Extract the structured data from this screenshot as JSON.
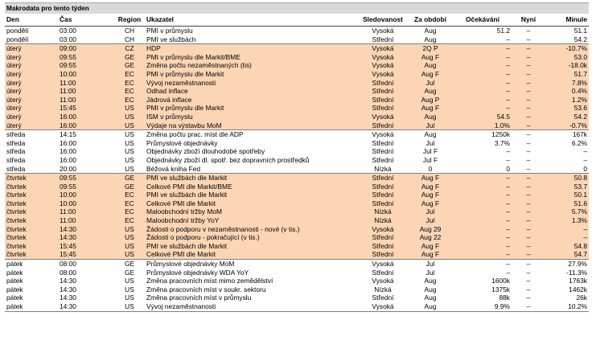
{
  "title": "Makrodata pro tento týden",
  "headers": [
    "Den",
    "Čas",
    "Region",
    "Ukazatel",
    "Sledovanost",
    "Za období",
    "Očekávání",
    "Nyní",
    "Minule"
  ],
  "colors": {
    "highlight": "#fcd5b4",
    "title_bg": "#d9d9d9"
  },
  "rows": [
    {
      "day": "pondělí",
      "time": "03:00",
      "region": "CH",
      "indicator": "PMI v průmyslu",
      "watch": "Vysoká",
      "period": "Aug",
      "expected": "51.2",
      "now": "–",
      "previous": "51.1",
      "hl": false,
      "grp": false
    },
    {
      "day": "pondělí",
      "time": "03:00",
      "region": "CH",
      "indicator": "PMI ve službách",
      "watch": "Střední",
      "period": "Aug",
      "expected": "–",
      "now": "–",
      "previous": "54.2",
      "hl": false,
      "grp": false
    },
    {
      "day": "úterý",
      "time": "09:00",
      "region": "CZ",
      "indicator": "HDP",
      "watch": "Vysoká",
      "period": "2Q P",
      "expected": "–",
      "now": "–",
      "previous": "-10.7%",
      "hl": true,
      "grp": true
    },
    {
      "day": "úterý",
      "time": "09:55",
      "region": "GE",
      "indicator": "PMI v průmyslu dle Markit/BME",
      "watch": "Vysoká",
      "period": "Aug F",
      "expected": "–",
      "now": "–",
      "previous": "53.0",
      "hl": true,
      "grp": false
    },
    {
      "day": "úterý",
      "time": "09:55",
      "region": "GE",
      "indicator": "Změna počtu nezaměstnaných (tis)",
      "watch": "Vysoká",
      "period": "Aug",
      "expected": "–",
      "now": "–",
      "previous": "-18.0k",
      "hl": true,
      "grp": false
    },
    {
      "day": "úterý",
      "time": "10:00",
      "region": "EC",
      "indicator": "PMI v průmyslu dle Markit",
      "watch": "Vysoká",
      "period": "Aug F",
      "expected": "–",
      "now": "–",
      "previous": "51.7",
      "hl": true,
      "grp": false
    },
    {
      "day": "úterý",
      "time": "11:00",
      "region": "EC",
      "indicator": "Vývoj nezaměstnanosti",
      "watch": "Střední",
      "period": "Jul",
      "expected": "–",
      "now": "–",
      "previous": "7.8%",
      "hl": true,
      "grp": false
    },
    {
      "day": "úterý",
      "time": "11:00",
      "region": "EC",
      "indicator": "Odhad inflace",
      "watch": "Střední",
      "period": "Aug",
      "expected": "–",
      "now": "–",
      "previous": "0.4%",
      "hl": true,
      "grp": false
    },
    {
      "day": "úterý",
      "time": "11:00",
      "region": "EC",
      "indicator": "Jádrová inflace",
      "watch": "Střední",
      "period": "Aug P",
      "expected": "–",
      "now": "–",
      "previous": "1.2%",
      "hl": true,
      "grp": false
    },
    {
      "day": "úterý",
      "time": "15:45",
      "region": "US",
      "indicator": "PMI v průmyslu dle Markit",
      "watch": "Střední",
      "period": "Aug F",
      "expected": "–",
      "now": "–",
      "previous": "53.6",
      "hl": true,
      "grp": false
    },
    {
      "day": "úterý",
      "time": "16:00",
      "region": "US",
      "indicator": "ISM v průmyslu",
      "watch": "Vysoká",
      "period": "Aug",
      "expected": "54.5",
      "now": "–",
      "previous": "54.2",
      "hl": true,
      "grp": false
    },
    {
      "day": "úterý",
      "time": "16:00",
      "region": "US",
      "indicator": "Výdaje na výstavbu MoM",
      "watch": "Střední",
      "period": "Jul",
      "expected": "1.0%",
      "now": "–",
      "previous": "-0.7%",
      "hl": true,
      "grp": false
    },
    {
      "day": "středa",
      "time": "14:15",
      "region": "US",
      "indicator": "Změna počtu prac. míst dle ADP",
      "watch": "Vysoká",
      "period": "Aug",
      "expected": "1250k",
      "now": "–",
      "previous": "167k",
      "hl": false,
      "grp": true
    },
    {
      "day": "středa",
      "time": "16:00",
      "region": "US",
      "indicator": "Průmyslové objednávky",
      "watch": "Střední",
      "period": "Jul",
      "expected": "3.7%",
      "now": "–",
      "previous": "6.2%",
      "hl": false,
      "grp": false
    },
    {
      "day": "středa",
      "time": "16:00",
      "region": "US",
      "indicator": "Objednávky zboží dlouhodobé spotřeby",
      "watch": "Střední",
      "period": "Jul F",
      "expected": "–",
      "now": "–",
      "previous": "–",
      "hl": false,
      "grp": false
    },
    {
      "day": "středa",
      "time": "16:00",
      "region": "US",
      "indicator": "Objednávky zboží dl. spotř. bez dopravních prostředků",
      "watch": "Střední",
      "period": "Jul F",
      "expected": "–",
      "now": "–",
      "previous": "–",
      "hl": false,
      "grp": false
    },
    {
      "day": "středa",
      "time": "20:00",
      "region": "US",
      "indicator": "Béžová kniha Fed",
      "watch": "Nízká",
      "period": "0",
      "expected": "0",
      "now": "–",
      "previous": "0",
      "hl": false,
      "grp": false
    },
    {
      "day": "čtvrtek",
      "time": "09:55",
      "region": "GE",
      "indicator": "PMI ve službách dle Markit",
      "watch": "Střední",
      "period": "Aug F",
      "expected": "–",
      "now": "–",
      "previous": "50.8",
      "hl": true,
      "grp": true
    },
    {
      "day": "čtvrtek",
      "time": "09:55",
      "region": "GE",
      "indicator": "Celkové PMI dle Markit/BME",
      "watch": "Střední",
      "period": "Aug F",
      "expected": "–",
      "now": "–",
      "previous": "53.7",
      "hl": true,
      "grp": false
    },
    {
      "day": "čtvrtek",
      "time": "10:00",
      "region": "EC",
      "indicator": "PMI ve službách dle Markit",
      "watch": "Střední",
      "period": "Aug F",
      "expected": "–",
      "now": "–",
      "previous": "50.1",
      "hl": true,
      "grp": false
    },
    {
      "day": "čtvrtek",
      "time": "10:00",
      "region": "EC",
      "indicator": "Celkové PMI dle Markit",
      "watch": "Střední",
      "period": "Aug F",
      "expected": "–",
      "now": "–",
      "previous": "51.6",
      "hl": true,
      "grp": false
    },
    {
      "day": "čtvrtek",
      "time": "11:00",
      "region": "EC",
      "indicator": "Maloobchodní tržby MoM",
      "watch": "Nízká",
      "period": "Jul",
      "expected": "–",
      "now": "–",
      "previous": "5.7%",
      "hl": true,
      "grp": false
    },
    {
      "day": "čtvrtek",
      "time": "11:00",
      "region": "EC",
      "indicator": "Maloobchodní tržby YoY",
      "watch": "Nízká",
      "period": "Jul",
      "expected": "–",
      "now": "–",
      "previous": "1.3%",
      "hl": true,
      "grp": false
    },
    {
      "day": "čtvrtek",
      "time": "14:30",
      "region": "US",
      "indicator": "Žádosti o podporu v nezaměstnanosti - nové (v tis.)",
      "watch": "Vysoká",
      "period": "Aug 29",
      "expected": "–",
      "now": "–",
      "previous": "–",
      "hl": true,
      "grp": false
    },
    {
      "day": "čtvrtek",
      "time": "14:30",
      "region": "US",
      "indicator": "Žádosti o podporu - pokračující (v tis.)",
      "watch": "Střední",
      "period": "Aug 22",
      "expected": "–",
      "now": "–",
      "previous": "–",
      "hl": true,
      "grp": false
    },
    {
      "day": "čtvrtek",
      "time": "15:45",
      "region": "US",
      "indicator": "PMI ve službách dle Markit",
      "watch": "Střední",
      "period": "Aug F",
      "expected": "–",
      "now": "–",
      "previous": "54.8",
      "hl": true,
      "grp": false
    },
    {
      "day": "čtvrtek",
      "time": "15:45",
      "region": "US",
      "indicator": "Celkové PMI dle Markit",
      "watch": "Střední",
      "period": "Aug F",
      "expected": "–",
      "now": "–",
      "previous": "54.7",
      "hl": true,
      "grp": false
    },
    {
      "day": "pátek",
      "time": "08:00",
      "region": "GE",
      "indicator": "Průmyslové objednávky MoM",
      "watch": "Vysoká",
      "period": "Jul",
      "expected": "–",
      "now": "–",
      "previous": "27.9%",
      "hl": false,
      "grp": true
    },
    {
      "day": "pátek",
      "time": "08:00",
      "region": "GE",
      "indicator": "Průmyslové objednávky WDA YoY",
      "watch": "Střední",
      "period": "Jul",
      "expected": "–",
      "now": "–",
      "previous": "-11.3%",
      "hl": false,
      "grp": false
    },
    {
      "day": "pátek",
      "time": "14:30",
      "region": "US",
      "indicator": "Změna pracovních míst mimo zemědělství",
      "watch": "Vysoká",
      "period": "Aug",
      "expected": "1600k",
      "now": "–",
      "previous": "1763k",
      "hl": false,
      "grp": false
    },
    {
      "day": "pátek",
      "time": "14:30",
      "region": "US",
      "indicator": "Změna pracovních míst v soukr. sektoru",
      "watch": "Nízká",
      "period": "Aug",
      "expected": "1375k",
      "now": "–",
      "previous": "1462k",
      "hl": false,
      "grp": false
    },
    {
      "day": "pátek",
      "time": "14:30",
      "region": "US",
      "indicator": "Změna pracovních míst v průmyslu",
      "watch": "Střední",
      "period": "Aug",
      "expected": "88k",
      "now": "–",
      "previous": "26k",
      "hl": false,
      "grp": false
    },
    {
      "day": "pátek",
      "time": "14:30",
      "region": "US",
      "indicator": "Vývoj nezaměstnanosti",
      "watch": "Vysoká",
      "period": "Aug",
      "expected": "9.9%",
      "now": "–",
      "previous": "10.2%",
      "hl": false,
      "grp": false
    }
  ]
}
